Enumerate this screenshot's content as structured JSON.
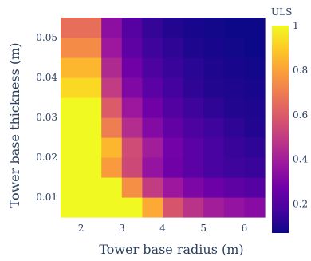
{
  "chart_data": {
    "type": "heatmap",
    "xlabel": "Tower base radius (m)",
    "ylabel": "Tower base thickness (m)",
    "colorbar_title": "ULS",
    "colorscale": "plasma",
    "zlim": [
      0.07,
      1.0
    ],
    "x": [
      1.75,
      2.25,
      2.75,
      3.25,
      3.75,
      4.25,
      4.75,
      5.25,
      5.75,
      6.25
    ],
    "y": [
      0.0075,
      0.0125,
      0.0175,
      0.0225,
      0.0275,
      0.0325,
      0.0375,
      0.0425,
      0.0475,
      0.0525
    ],
    "xlim": [
      1.5,
      6.5
    ],
    "ylim": [
      0.005,
      0.055
    ],
    "x_ticks": [
      "2",
      "3",
      "4",
      "5",
      "6"
    ],
    "x_tick_values": [
      2,
      3,
      4,
      5,
      6
    ],
    "y_ticks": [
      "0.01",
      "0.02",
      "0.03",
      "0.04",
      "0.05"
    ],
    "y_tick_values": [
      0.01,
      0.02,
      0.03,
      0.04,
      0.05
    ],
    "colorbar_ticks": [
      "0.2",
      "0.4",
      "0.6",
      "0.8",
      "1"
    ],
    "colorbar_tick_values": [
      0.2,
      0.4,
      0.6,
      0.8,
      1.0
    ],
    "z": [
      [
        1.0,
        1.0,
        1.0,
        1.0,
        0.82,
        0.58,
        0.47,
        0.4,
        0.36,
        0.33
      ],
      [
        1.0,
        1.0,
        1.0,
        0.75,
        0.5,
        0.38,
        0.3,
        0.26,
        0.23,
        0.21
      ],
      [
        1.0,
        1.0,
        0.78,
        0.54,
        0.36,
        0.27,
        0.22,
        0.18,
        0.16,
        0.15
      ],
      [
        1.0,
        1.0,
        0.85,
        0.55,
        0.4,
        0.28,
        0.22,
        0.18,
        0.15,
        0.13
      ],
      [
        1.0,
        1.0,
        0.7,
        0.45,
        0.32,
        0.24,
        0.19,
        0.16,
        0.13,
        0.11
      ],
      [
        1.0,
        1.0,
        0.6,
        0.38,
        0.27,
        0.2,
        0.16,
        0.13,
        0.11,
        0.1
      ],
      [
        0.93,
        0.93,
        0.5,
        0.31,
        0.22,
        0.17,
        0.13,
        0.11,
        0.1,
        0.09
      ],
      [
        0.85,
        0.85,
        0.44,
        0.27,
        0.19,
        0.15,
        0.12,
        0.1,
        0.09,
        0.08
      ],
      [
        0.74,
        0.74,
        0.38,
        0.23,
        0.16,
        0.13,
        0.1,
        0.09,
        0.08,
        0.07
      ],
      [
        0.66,
        0.66,
        0.34,
        0.21,
        0.14,
        0.11,
        0.09,
        0.08,
        0.07,
        0.07
      ]
    ]
  }
}
